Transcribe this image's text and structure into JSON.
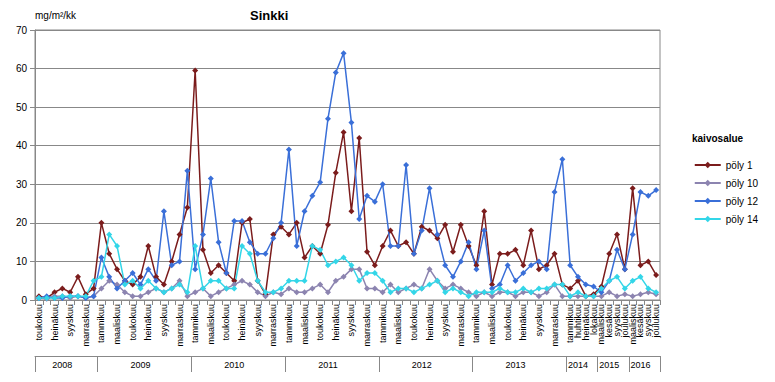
{
  "chart_data": {
    "type": "line",
    "title": "Sinkki",
    "y_label": "mg/m²/kk",
    "legend_title": "kaivosalue",
    "legend": "right",
    "grid": true,
    "marker": "diamond",
    "line_style": "solid",
    "ylim": [
      0,
      70
    ],
    "yticks": [
      0,
      10,
      20,
      30,
      40,
      50,
      60,
      70
    ],
    "categories": [
      "toukokuu",
      null,
      "heinäkuu",
      null,
      "syyskuu",
      null,
      "marraskuu",
      null,
      "tammikuu",
      null,
      "maaliskuu",
      null,
      "toukokuu",
      null,
      "heinäkuu",
      null,
      "syyskuu",
      null,
      "marraskuu",
      null,
      "tammikuu",
      null,
      "maaliskuu",
      null,
      "toukokuu",
      null,
      "heinäkuu",
      null,
      "syyskuu",
      null,
      "marraskuu",
      null,
      "tammikuu",
      null,
      "maaliskuu",
      null,
      "toukokuu",
      null,
      "heinäkuu",
      null,
      "syyskuu",
      null,
      "marraskuu",
      null,
      "tammikuu",
      null,
      "maaliskuu",
      null,
      "toukokuu",
      null,
      "heinäkuu",
      null,
      "syyskuu",
      null,
      "marraskuu",
      null,
      "tammikuu",
      null,
      "maaliskuu",
      null,
      "toukokuu",
      null,
      "heinäkuu",
      null,
      "syyskuu",
      null,
      "marraskuu",
      null,
      "tammikuu",
      "huhtikuu",
      "heinäkuu",
      "lokakuu",
      "maaliskuu",
      "kesäkuu",
      "syyskuu",
      "joulukuu",
      "maaliskuu",
      "kesäkuu",
      "syyskuu",
      "joulukuu"
    ],
    "years": [
      "2008",
      "2008",
      "2008",
      "2008",
      "2008",
      "2008",
      "2008",
      "2008",
      "2009",
      "2009",
      "2009",
      "2009",
      "2009",
      "2009",
      "2009",
      "2009",
      "2009",
      "2009",
      "2009",
      "2009",
      "2010",
      "2010",
      "2010",
      "2010",
      "2010",
      "2010",
      "2010",
      "2010",
      "2010",
      "2010",
      "2010",
      "2010",
      "2011",
      "2011",
      "2011",
      "2011",
      "2011",
      "2011",
      "2011",
      "2011",
      "2011",
      "2011",
      "2011",
      "2011",
      "2012",
      "2012",
      "2012",
      "2012",
      "2012",
      "2012",
      "2012",
      "2012",
      "2012",
      "2012",
      "2012",
      "2012",
      "2013",
      "2013",
      "2013",
      "2013",
      "2013",
      "2013",
      "2013",
      "2013",
      "2013",
      "2013",
      "2013",
      "2013",
      "2014",
      "2014",
      "2014",
      "2014",
      "2015",
      "2015",
      "2015",
      "2015",
      "2016",
      "2016",
      "2016",
      "2016"
    ],
    "series": [
      {
        "name": "pöly 1",
        "color": "#7b1c1c",
        "values": [
          1,
          0.5,
          2,
          3,
          2,
          6,
          1.5,
          3,
          20,
          12,
          8,
          5,
          4,
          6,
          14,
          6,
          4,
          10,
          17,
          24,
          59.5,
          13,
          7,
          9,
          7,
          5,
          20,
          21,
          5,
          1.5,
          17,
          19,
          17,
          20,
          11,
          14,
          12,
          19.5,
          33,
          43.5,
          23,
          42,
          12.5,
          9,
          14,
          18,
          14,
          15,
          12,
          19,
          18,
          16,
          19.5,
          12.5,
          19.5,
          14,
          9,
          23,
          4,
          12,
          12,
          13,
          9,
          18,
          8,
          9,
          12,
          4,
          3,
          5,
          1,
          1.5,
          3.5,
          12,
          17,
          8,
          29,
          9,
          10,
          6.5
        ]
      },
      {
        "name": "pöly 10",
        "color": "#8c84b0",
        "values": [
          0.5,
          0.3,
          1,
          1,
          0.5,
          1,
          0.5,
          1,
          3,
          5,
          4,
          2,
          1,
          1,
          2,
          3,
          2,
          3,
          5,
          1,
          2,
          3,
          1,
          2,
          3,
          4,
          5,
          4,
          2,
          1,
          2,
          1.5,
          3,
          2,
          2,
          3,
          4,
          2,
          5,
          6,
          8,
          8,
          3,
          3,
          2,
          4,
          2,
          3,
          4,
          3,
          8,
          5,
          3,
          4,
          3,
          2,
          1,
          2,
          1,
          2,
          2,
          1,
          2,
          2,
          1,
          2,
          4,
          1,
          1,
          1,
          1,
          1,
          1,
          2,
          1,
          1.5,
          1,
          1.5,
          2,
          1.5
        ]
      },
      {
        "name": "pöly 12",
        "color": "#3a6fd8",
        "values": [
          0.5,
          1,
          0.5,
          0.5,
          1,
          1,
          0.5,
          1,
          11,
          6,
          3,
          5,
          7,
          4,
          8,
          5,
          23,
          9,
          10,
          33.5,
          8,
          17,
          31.5,
          15,
          7,
          20.5,
          20.5,
          15,
          12,
          12,
          16,
          20,
          39,
          14,
          23,
          27,
          30.5,
          47,
          59,
          64,
          46,
          21,
          27,
          25.5,
          30,
          14,
          14,
          35,
          12,
          18,
          29,
          17,
          9,
          6,
          10,
          15,
          8,
          18,
          3,
          4,
          9,
          5,
          7,
          9,
          10,
          8,
          28,
          36.5,
          9,
          6,
          4,
          3.5,
          2,
          5,
          13,
          8,
          17,
          28,
          27,
          28.5
        ]
      },
      {
        "name": "pöly 14",
        "color": "#33d6e8",
        "values": [
          0.5,
          0.5,
          0.5,
          1,
          1,
          1,
          1,
          5,
          6,
          17,
          14,
          4,
          5,
          3,
          5,
          3,
          2,
          3,
          4,
          2,
          14,
          3,
          5,
          5,
          3,
          3,
          14,
          12,
          5,
          2,
          2,
          3,
          5,
          5,
          5,
          14,
          13,
          9,
          10,
          11,
          9,
          5,
          7,
          7,
          5,
          2,
          3,
          3,
          2,
          3,
          4,
          5,
          2,
          3,
          2,
          1,
          2,
          2,
          2,
          3,
          2,
          2,
          3,
          2,
          3,
          3,
          4,
          4,
          1,
          2,
          1,
          1,
          3,
          5,
          6,
          3,
          5,
          6,
          3,
          2
        ]
      }
    ]
  }
}
